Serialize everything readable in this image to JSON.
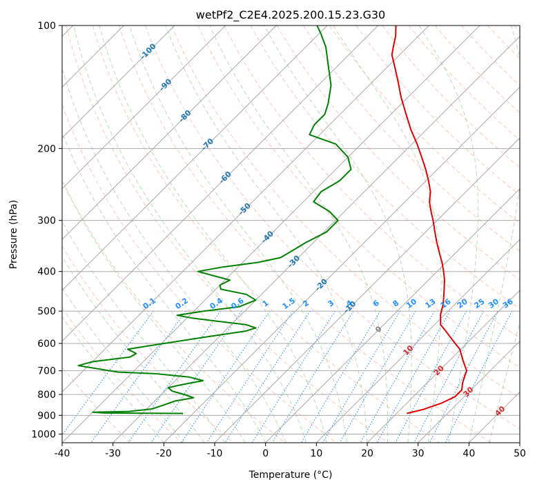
{
  "chart_data": {
    "type": "line",
    "subtype": "skew-t log-p diagram",
    "title": "wetPf2_C2E4.2025.200.15.23.G30",
    "xlabel": "Temperature (°C)",
    "ylabel": "Pressure (hPa)",
    "xlim": [
      -40,
      50
    ],
    "ylim": [
      1050,
      100
    ],
    "y_scale": "log",
    "x_ticks": [
      -40,
      -30,
      -20,
      -10,
      0,
      10,
      20,
      30,
      40,
      50
    ],
    "y_ticks": [
      100,
      200,
      300,
      400,
      500,
      600,
      700,
      800,
      900,
      1000
    ],
    "grid": true,
    "series": [
      {
        "key": "temperature",
        "color": "#e00000",
        "points": [
          {
            "p": 890,
            "t": 22
          },
          {
            "p": 870,
            "t": 24.5
          },
          {
            "p": 840,
            "t": 26.8
          },
          {
            "p": 810,
            "t": 28.2
          },
          {
            "p": 780,
            "t": 28.2
          },
          {
            "p": 750,
            "t": 27.0
          },
          {
            "p": 720,
            "t": 26.0
          },
          {
            "p": 700,
            "t": 25.4
          },
          {
            "p": 660,
            "t": 22.6
          },
          {
            "p": 620,
            "t": 19.8
          },
          {
            "p": 590,
            "t": 16.7
          },
          {
            "p": 560,
            "t": 13.5
          },
          {
            "p": 540,
            "t": 11.2
          },
          {
            "p": 510,
            "t": 9.2
          },
          {
            "p": 480,
            "t": 7.6
          },
          {
            "p": 450,
            "t": 5.5
          },
          {
            "p": 420,
            "t": 3.2
          },
          {
            "p": 400,
            "t": 1.3
          },
          {
            "p": 380,
            "t": -0.8
          },
          {
            "p": 360,
            "t": -3.2
          },
          {
            "p": 340,
            "t": -5.7
          },
          {
            "p": 320,
            "t": -8.2
          },
          {
            "p": 300,
            "t": -10.8
          },
          {
            "p": 285,
            "t": -13.0
          },
          {
            "p": 270,
            "t": -15.2
          },
          {
            "p": 255,
            "t": -17.0
          },
          {
            "p": 240,
            "t": -19.5
          },
          {
            "p": 225,
            "t": -22.3
          },
          {
            "p": 210,
            "t": -25.5
          },
          {
            "p": 195,
            "t": -29.0
          },
          {
            "p": 180,
            "t": -33.0
          },
          {
            "p": 165,
            "t": -37.0
          },
          {
            "p": 150,
            "t": -41.3
          },
          {
            "p": 135,
            "t": -45.7
          },
          {
            "p": 125,
            "t": -49.0
          },
          {
            "p": 118,
            "t": -51.5
          },
          {
            "p": 112,
            "t": -53.0
          },
          {
            "p": 106,
            "t": -54.5
          },
          {
            "p": 100,
            "t": -56.5
          }
        ]
      },
      {
        "key": "dewpoint",
        "color": "#008000",
        "points": [
          {
            "p": 890,
            "t": -22
          },
          {
            "p": 888,
            "t": -37.5
          },
          {
            "p": 884,
            "t": -40
          },
          {
            "p": 880,
            "t": -33
          },
          {
            "p": 868,
            "t": -29
          },
          {
            "p": 850,
            "t": -27.5
          },
          {
            "p": 830,
            "t": -26
          },
          {
            "p": 815,
            "t": -23
          },
          {
            "p": 800,
            "t": -25.5
          },
          {
            "p": 785,
            "t": -28.5
          },
          {
            "p": 770,
            "t": -30
          },
          {
            "p": 755,
            "t": -27.5
          },
          {
            "p": 740,
            "t": -24.5
          },
          {
            "p": 725,
            "t": -28
          },
          {
            "p": 712,
            "t": -35
          },
          {
            "p": 705,
            "t": -43
          },
          {
            "p": 680,
            "t": -52
          },
          {
            "p": 665,
            "t": -50
          },
          {
            "p": 648,
            "t": -43.5
          },
          {
            "p": 635,
            "t": -43
          },
          {
            "p": 620,
            "t": -45.5
          },
          {
            "p": 600,
            "t": -39.5
          },
          {
            "p": 580,
            "t": -33
          },
          {
            "p": 560,
            "t": -26
          },
          {
            "p": 550,
            "t": -24.5
          },
          {
            "p": 540,
            "t": -27
          },
          {
            "p": 530,
            "t": -33
          },
          {
            "p": 520,
            "t": -39
          },
          {
            "p": 512,
            "t": -42.5
          },
          {
            "p": 500,
            "t": -38
          },
          {
            "p": 488,
            "t": -32
          },
          {
            "p": 470,
            "t": -30
          },
          {
            "p": 455,
            "t": -33
          },
          {
            "p": 442,
            "t": -39
          },
          {
            "p": 432,
            "t": -40
          },
          {
            "p": 420,
            "t": -39
          },
          {
            "p": 410,
            "t": -43
          },
          {
            "p": 400,
            "t": -47
          },
          {
            "p": 390,
            "t": -43
          },
          {
            "p": 380,
            "t": -37
          },
          {
            "p": 370,
            "t": -33.5
          },
          {
            "p": 355,
            "t": -32.5
          },
          {
            "p": 340,
            "t": -31.5
          },
          {
            "p": 320,
            "t": -29.5
          },
          {
            "p": 300,
            "t": -29.5
          },
          {
            "p": 285,
            "t": -33
          },
          {
            "p": 270,
            "t": -38
          },
          {
            "p": 255,
            "t": -38.5
          },
          {
            "p": 240,
            "t": -37
          },
          {
            "p": 225,
            "t": -37
          },
          {
            "p": 210,
            "t": -40
          },
          {
            "p": 195,
            "t": -45
          },
          {
            "p": 185,
            "t": -52
          },
          {
            "p": 175,
            "t": -53
          },
          {
            "p": 165,
            "t": -53
          },
          {
            "p": 155,
            "t": -54.5
          },
          {
            "p": 140,
            "t": -57.5
          },
          {
            "p": 125,
            "t": -62
          },
          {
            "p": 113,
            "t": -66
          },
          {
            "p": 105,
            "t": -69.5
          },
          {
            "p": 100,
            "t": -72
          }
        ]
      }
    ],
    "isotherm_labels": [
      "-100",
      "-90",
      "-80",
      "-70",
      "-60",
      "-50",
      "-40",
      "-30",
      "-20",
      "-10",
      "0",
      "10",
      "20",
      "30",
      "40"
    ],
    "isotherm_label_values": [
      -100,
      -90,
      -80,
      -70,
      -60,
      -50,
      -40,
      -30,
      -20,
      -10,
      0,
      10,
      20,
      30,
      40
    ],
    "mixing_ratio_labels": [
      "0.1",
      "0.2",
      "0.4",
      "0.6",
      "1",
      "1.5",
      "2",
      "3",
      "4",
      "6",
      "8",
      "10",
      "13",
      "16",
      "20",
      "25",
      "30",
      "36"
    ],
    "mixing_ratio_values": [
      0.1,
      0.2,
      0.4,
      0.6,
      1,
      1.5,
      2,
      3,
      4,
      6,
      8,
      10,
      13,
      16,
      20,
      25,
      30,
      36
    ],
    "colors": {
      "isotherm_cold": "#1f77b4",
      "isotherm_zero": "#808080",
      "isotherm_warm": "#d62728",
      "mixing_ratio": "#1e90ff",
      "dry_adiabat": "#fa8060",
      "moist_adiabat": "#78b478",
      "grid": "#a9a9a9"
    }
  }
}
